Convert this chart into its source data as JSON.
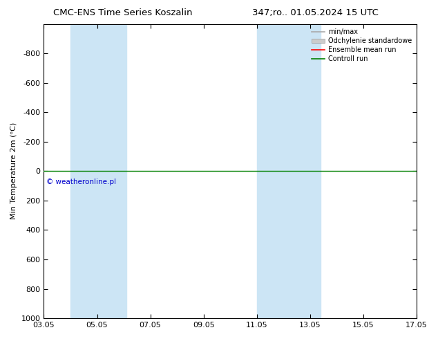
{
  "title_left": "CMC-ENS Time Series Koszalin",
  "title_right": "347;ro.. 01.05.2024 15 UTC",
  "ylabel": "Min Temperature 2m (ᵒC)",
  "ylim_top": -1000,
  "ylim_bottom": 1000,
  "yticks": [
    -800,
    -600,
    -400,
    -200,
    0,
    200,
    400,
    600,
    800,
    1000
  ],
  "xtick_labels": [
    "03.05",
    "05.05",
    "07.05",
    "09.05",
    "11.05",
    "13.05",
    "15.05",
    "17.05"
  ],
  "xtick_positions": [
    3,
    5,
    7,
    9,
    11,
    13,
    15,
    17
  ],
  "xlim": [
    3,
    17
  ],
  "shaded_regions": [
    [
      4.0,
      5.05
    ],
    [
      5.05,
      6.1
    ],
    [
      11.0,
      12.05
    ],
    [
      12.05,
      13.4
    ]
  ],
  "shaded_color": "#cce5f5",
  "green_line_y": 0,
  "green_line_color": "#008000",
  "red_line_color": "#ff0000",
  "watermark_text": "© weatheronline.pl",
  "watermark_color": "#0000cc",
  "legend_items": [
    "min/max",
    "Odchylenie standardowe",
    "Ensemble mean run",
    "Controll run"
  ],
  "background_color": "#ffffff",
  "title_fontsize": 9.5,
  "axis_fontsize": 8,
  "legend_fontsize": 7
}
